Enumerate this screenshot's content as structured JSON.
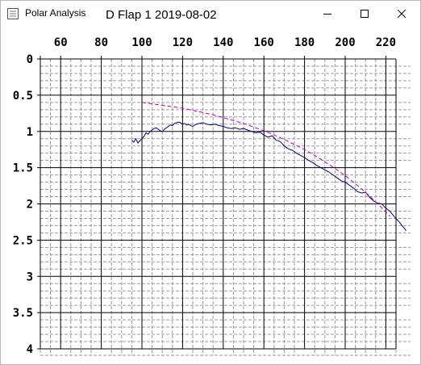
{
  "window": {
    "app_title": "Polar Analysis",
    "controls": [
      "minimize-icon",
      "maximize-icon",
      "close-icon"
    ]
  },
  "chart_data": {
    "type": "line",
    "title": "D Flap 1 2019-08-02",
    "xlabel": "",
    "ylabel": "",
    "xlim": [
      50,
      225
    ],
    "ylim": [
      0,
      4
    ],
    "y_inverted": true,
    "x_ticks": [
      "60",
      "80",
      "100",
      "120",
      "140",
      "160",
      "180",
      "200",
      "220"
    ],
    "y_ticks": [
      "0",
      "0.5",
      "1",
      "1.5",
      "2",
      "2.5",
      "3",
      "3.5",
      "4"
    ],
    "grid": true,
    "legend": "none",
    "series": [
      {
        "color": "#00008b",
        "style": "solid",
        "x": [
          95,
          96,
          97,
          98,
          99,
          100,
          101,
          102,
          103,
          104,
          105,
          106,
          107,
          108,
          109,
          110,
          111,
          112,
          113,
          114,
          115,
          116,
          117,
          118,
          119,
          120,
          121,
          122,
          123,
          124,
          125,
          126,
          128,
          130,
          132,
          134,
          136,
          138,
          140,
          142,
          144,
          146,
          148,
          150,
          152,
          154,
          156,
          158,
          160,
          162,
          164,
          166,
          168,
          170,
          172,
          174,
          176,
          178,
          180,
          182,
          184,
          186,
          188,
          190,
          192,
          194,
          196,
          198,
          200,
          202,
          204,
          206,
          208,
          210,
          212,
          214,
          216,
          218,
          220,
          222,
          224,
          226,
          228,
          230
        ],
        "y": [
          1.12,
          1.15,
          1.1,
          1.16,
          1.13,
          1.1,
          1.07,
          1.02,
          1.04,
          1.0,
          0.98,
          0.96,
          0.95,
          0.97,
          0.99,
          1.0,
          0.97,
          0.95,
          0.93,
          0.91,
          0.92,
          0.89,
          0.88,
          0.87,
          0.88,
          0.9,
          0.89,
          0.91,
          0.9,
          0.92,
          0.93,
          0.91,
          0.89,
          0.88,
          0.9,
          0.91,
          0.9,
          0.92,
          0.93,
          0.95,
          0.96,
          0.95,
          0.97,
          0.96,
          0.98,
          1.0,
          1.02,
          1.01,
          1.05,
          1.08,
          1.06,
          1.12,
          1.14,
          1.2,
          1.24,
          1.26,
          1.3,
          1.33,
          1.36,
          1.4,
          1.43,
          1.47,
          1.5,
          1.53,
          1.56,
          1.6,
          1.64,
          1.68,
          1.7,
          1.74,
          1.78,
          1.83,
          1.85,
          1.84,
          1.91,
          1.96,
          1.99,
          2.0,
          2.06,
          2.1,
          2.17,
          2.23,
          2.3,
          2.37
        ]
      },
      {
        "color": "#c000c0",
        "style": "dashed",
        "x": [
          100,
          105,
          110,
          115,
          120,
          125,
          130,
          135,
          140,
          145,
          150,
          155,
          160,
          165,
          170,
          175,
          180,
          185,
          190,
          195,
          200,
          205,
          210,
          215,
          220,
          222
        ],
        "y": [
          0.6,
          0.62,
          0.64,
          0.66,
          0.68,
          0.71,
          0.74,
          0.77,
          0.81,
          0.85,
          0.89,
          0.94,
          0.99,
          1.05,
          1.11,
          1.18,
          1.25,
          1.33,
          1.42,
          1.51,
          1.61,
          1.72,
          1.84,
          1.97,
          2.11,
          2.17
        ]
      }
    ]
  }
}
